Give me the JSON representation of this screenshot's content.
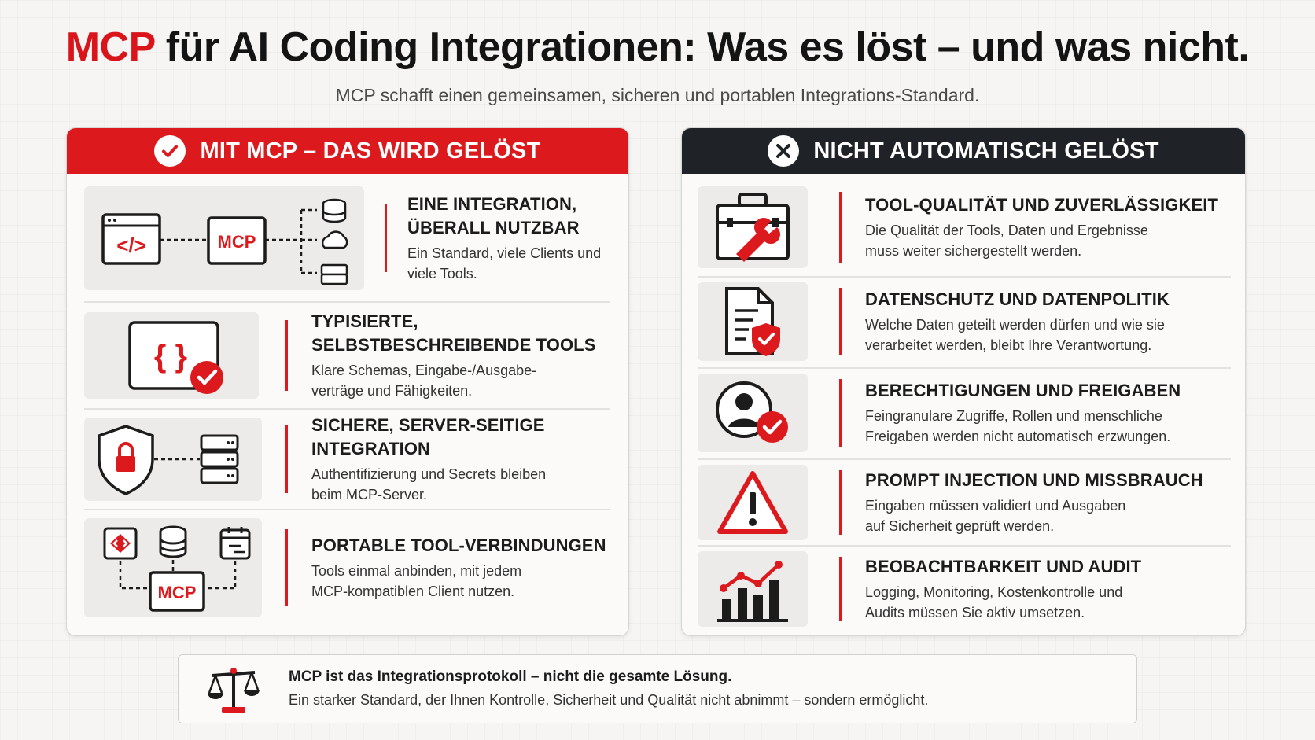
{
  "title": {
    "accent": "MCP",
    "rest": "für AI Coding Integrationen: Was es löst – und was nicht."
  },
  "subtitle": "MCP schafft einen gemeinsamen, sicheren und portablen Integrations-Standard.",
  "colors": {
    "accent": "#dc1a1e",
    "dark": "#1f2328"
  },
  "left_panel": {
    "header": "MIT MCP – DAS WIRD GELÖST",
    "header_icon": "check-circle-icon",
    "items": [
      {
        "title_line1": "EINE INTEGRATION,",
        "title_line2": "ÜBERALL NUTZBAR",
        "desc_line1": "Ein Standard, viele Clients und",
        "desc_line2": "viele Tools.",
        "icon": "integration-hub-icon",
        "icon_label": "MCP"
      },
      {
        "title_line1": "TYPISIERTE, SELBSTBESCHREIBENDE TOOLS",
        "desc_line1": "Klare Schemas, Eingabe-/Ausgabe-",
        "desc_line2": "verträge und Fähigkeiten.",
        "icon": "schema-check-icon",
        "icon_label": "{ }"
      },
      {
        "title_line1": "SICHERE, SERVER-SEITIGE INTEGRATION",
        "desc_line1": "Authentifizierung und Secrets bleiben",
        "desc_line2": "beim MCP-Server.",
        "icon": "shield-server-icon"
      },
      {
        "title_line1": "PORTABLE TOOL-VERBINDUNGEN",
        "desc_line1": "Tools einmal anbinden, mit jedem",
        "desc_line2": "MCP-kompatiblen Client nutzen.",
        "icon": "portable-connections-icon",
        "icon_label": "MCP"
      }
    ]
  },
  "right_panel": {
    "header": "NICHT AUTOMATISCH GELÖST",
    "header_icon": "x-circle-icon",
    "items": [
      {
        "title_line1": "TOOL-QUALITÄT UND ZUVERLÄSSIGKEIT",
        "desc_line1": "Die Qualität der Tools, Daten und Ergebnisse",
        "desc_line2": "muss weiter sichergestellt werden.",
        "icon": "toolbox-icon"
      },
      {
        "title_line1": "DATENSCHUTZ UND DATENPOLITIK",
        "desc_line1": "Welche Daten geteilt werden dürfen und wie sie",
        "desc_line2": "verarbeitet werden, bleibt Ihre Verantwortung.",
        "icon": "document-shield-icon"
      },
      {
        "title_line1": "BERECHTIGUNGEN UND FREIGABEN",
        "desc_line1": "Feingranulare Zugriffe, Rollen und menschliche",
        "desc_line2": "Freigaben werden nicht automatisch erzwungen.",
        "icon": "user-check-icon"
      },
      {
        "title_line1": "PROMPT INJECTION UND MISSBRAUCH",
        "desc_line1": "Eingaben müssen validiert und Ausgaben",
        "desc_line2": "auf Sicherheit geprüft werden.",
        "icon": "warning-triangle-icon"
      },
      {
        "title_line1": "BEOBACHTBARKEIT UND AUDIT",
        "desc_line1": "Logging, Monitoring, Kostenkontrolle und",
        "desc_line2": "Audits müssen Sie aktiv umsetzen.",
        "icon": "bar-chart-trend-icon"
      }
    ]
  },
  "footer": {
    "icon": "balance-scale-icon",
    "title": "MCP ist das Integrationsprotokoll – nicht die gesamte Lösung.",
    "desc": "Ein starker Standard, der Ihnen Kontrolle, Sicherheit und Qualität nicht abnimmt – sondern ermöglicht."
  }
}
